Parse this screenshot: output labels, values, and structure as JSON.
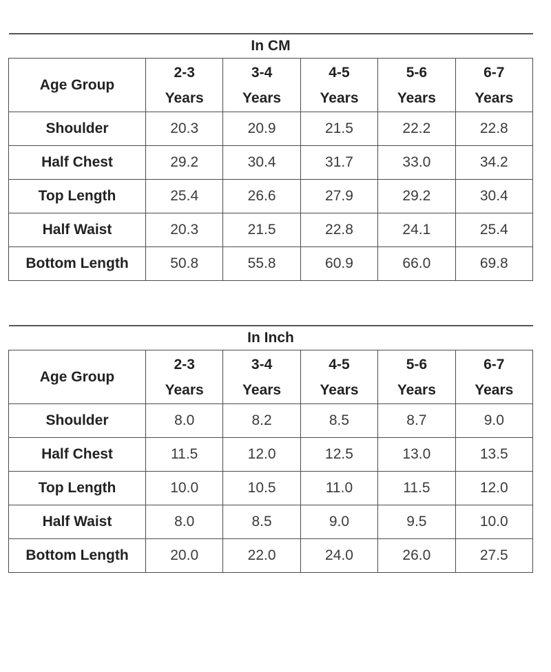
{
  "tables": [
    {
      "title": "In CM",
      "header_label": "Age Group",
      "columns": [
        {
          "line1": "2-3",
          "line2": "Years"
        },
        {
          "line1": "3-4",
          "line2": "Years"
        },
        {
          "line1": "4-5",
          "line2": "Years"
        },
        {
          "line1": "5-6",
          "line2": "Years"
        },
        {
          "line1": "6-7",
          "line2": "Years"
        }
      ],
      "rows": [
        {
          "label": "Shoulder",
          "values": [
            "20.3",
            "20.9",
            "21.5",
            "22.2",
            "22.8"
          ]
        },
        {
          "label": "Half Chest",
          "values": [
            "29.2",
            "30.4",
            "31.7",
            "33.0",
            "34.2"
          ]
        },
        {
          "label": "Top Length",
          "values": [
            "25.4",
            "26.6",
            "27.9",
            "29.2",
            "30.4"
          ]
        },
        {
          "label": "Half Waist",
          "values": [
            "20.3",
            "21.5",
            "22.8",
            "24.1",
            "25.4"
          ]
        },
        {
          "label": "Bottom Length",
          "values": [
            "50.8",
            "55.8",
            "60.9",
            "66.0",
            "69.8"
          ]
        }
      ]
    },
    {
      "title": "In Inch",
      "header_label": "Age Group",
      "columns": [
        {
          "line1": "2-3",
          "line2": "Years"
        },
        {
          "line1": "3-4",
          "line2": "Years"
        },
        {
          "line1": "4-5",
          "line2": "Years"
        },
        {
          "line1": "5-6",
          "line2": "Years"
        },
        {
          "line1": "6-7",
          "line2": "Years"
        }
      ],
      "rows": [
        {
          "label": "Shoulder",
          "values": [
            "8.0",
            "8.2",
            "8.5",
            "8.7",
            "9.0"
          ]
        },
        {
          "label": "Half Chest",
          "values": [
            "11.5",
            "12.0",
            "12.5",
            "13.0",
            "13.5"
          ]
        },
        {
          "label": "Top Length",
          "values": [
            "10.0",
            "10.5",
            "11.0",
            "11.5",
            "12.0"
          ]
        },
        {
          "label": "Half Waist",
          "values": [
            "8.0",
            "8.5",
            "9.0",
            "9.5",
            "10.0"
          ]
        },
        {
          "label": "Bottom Length",
          "values": [
            "20.0",
            "22.0",
            "24.0",
            "26.0",
            "27.5"
          ]
        }
      ]
    }
  ]
}
